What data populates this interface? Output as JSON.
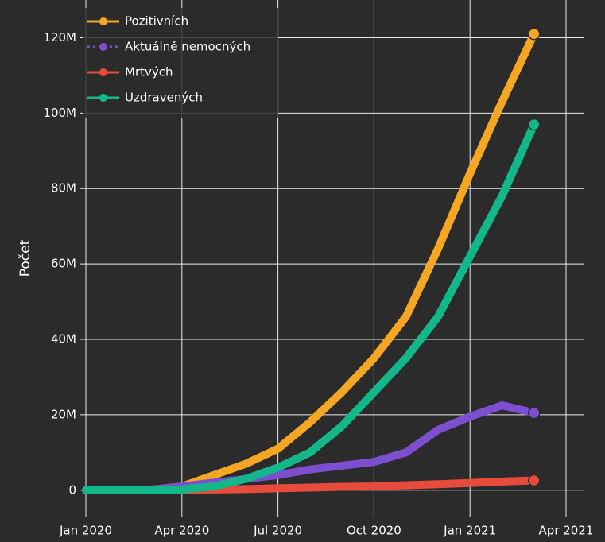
{
  "chart_data": {
    "type": "line",
    "y_label": "Počet",
    "x": [
      "2020-01",
      "2020-02",
      "2020-03",
      "2020-04",
      "2020-05",
      "2020-06",
      "2020-07",
      "2020-08",
      "2020-09",
      "2020-10",
      "2020-11",
      "2020-12",
      "2021-01",
      "2021-02",
      "2021-03"
    ],
    "series": [
      {
        "name": "Pozitivních",
        "color": "#f5a623",
        "values": [
          0,
          10000,
          100000,
          1000000,
          4000000,
          7000000,
          11000000,
          18000000,
          26000000,
          35000000,
          46000000,
          64000000,
          84000000,
          103000000,
          121000000
        ]
      },
      {
        "name": "Aktuálně nemocných",
        "color": "#7b4fd0",
        "dash": "dot",
        "values": [
          0,
          0,
          100000,
          1000000,
          2000000,
          3000000,
          4000000,
          5500000,
          6500000,
          7500000,
          10000000,
          16000000,
          19500000,
          22500000,
          20500000
        ]
      },
      {
        "name": "Mrtvých",
        "color": "#e64b3c",
        "values": [
          0,
          0,
          0,
          50000,
          200000,
          300000,
          500000,
          700000,
          900000,
          1000000,
          1300000,
          1600000,
          1900000,
          2300000,
          2600000
        ]
      },
      {
        "name": "Uzdravených",
        "color": "#13b88a",
        "values": [
          0,
          0,
          0,
          200000,
          1000000,
          3000000,
          6000000,
          10000000,
          17000000,
          26000000,
          35000000,
          46000000,
          62000000,
          78000000,
          97000000
        ]
      }
    ],
    "xlim": [
      "2020-01",
      "2021-04"
    ],
    "xticks": [
      {
        "value": "2020-01",
        "label": "Jan 2020"
      },
      {
        "value": "2020-04",
        "label": "Apr 2020"
      },
      {
        "value": "2020-07",
        "label": "Jul 2020"
      },
      {
        "value": "2020-10",
        "label": "Oct 2020"
      },
      {
        "value": "2021-01",
        "label": "Jan 2021"
      },
      {
        "value": "2021-04",
        "label": "Apr 2021"
      }
    ],
    "ylim": [
      -7000000,
      130000000
    ],
    "yticks": [
      0,
      {
        "value": 20000000,
        "label": "20M"
      },
      {
        "value": 40000000,
        "label": "40M"
      },
      {
        "value": 60000000,
        "label": "60M"
      },
      {
        "value": 80000000,
        "label": "80M"
      },
      {
        "value": 100000000,
        "label": "100M"
      },
      {
        "value": 120000000,
        "label": "120M"
      }
    ],
    "grid": true,
    "legend": "top-left"
  }
}
